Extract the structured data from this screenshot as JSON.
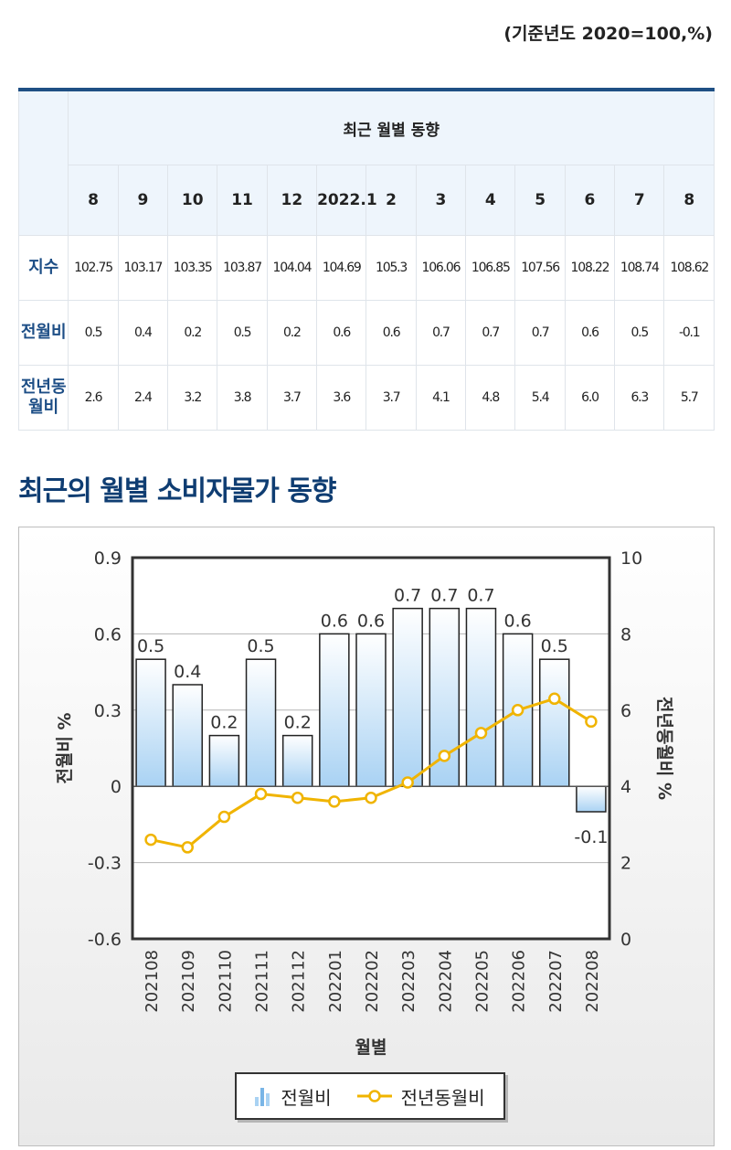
{
  "header": {
    "unit_note": "(기준년도 2020=100,%)"
  },
  "table": {
    "group_header": "최근 월별 동향",
    "months": [
      "8",
      "9",
      "10",
      "11",
      "12",
      "2022.1",
      "2",
      "3",
      "4",
      "5",
      "6",
      "7",
      "8"
    ],
    "rows": [
      {
        "label": "지수",
        "values": [
          "102.75",
          "103.17",
          "103.35",
          "103.87",
          "104.04",
          "104.69",
          "105.3",
          "106.06",
          "106.85",
          "107.56",
          "108.22",
          "108.74",
          "108.62"
        ]
      },
      {
        "label": "전월비",
        "values": [
          "0.5",
          "0.4",
          "0.2",
          "0.5",
          "0.2",
          "0.6",
          "0.6",
          "0.7",
          "0.7",
          "0.7",
          "0.6",
          "0.5",
          "-0.1"
        ]
      },
      {
        "label": "전년동월비",
        "values": [
          "2.6",
          "2.4",
          "3.2",
          "3.8",
          "3.7",
          "3.6",
          "3.7",
          "4.1",
          "4.8",
          "5.4",
          "6.0",
          "6.3",
          "5.7"
        ]
      }
    ]
  },
  "chart_title": "최근의 월별 소비자물가 동향",
  "chart_data": {
    "type": "bar",
    "categories": [
      "202108",
      "202109",
      "202110",
      "202111",
      "202112",
      "202201",
      "202202",
      "202203",
      "202204",
      "202205",
      "202206",
      "202207",
      "202208"
    ],
    "series": [
      {
        "name": "전월비",
        "type": "bar",
        "axis": "left",
        "values": [
          0.5,
          0.4,
          0.2,
          0.5,
          0.2,
          0.6,
          0.6,
          0.7,
          0.7,
          0.7,
          0.6,
          0.5,
          -0.1
        ],
        "labels": [
          "0.5",
          "0.4",
          "0.2",
          "0.5",
          "0.2",
          "0.6",
          "0.6",
          "0.7",
          "0.7",
          "0.7",
          "0.6",
          "0.5",
          "-0.1"
        ]
      },
      {
        "name": "전년동월비",
        "type": "line",
        "axis": "right",
        "values": [
          2.6,
          2.4,
          3.2,
          3.8,
          3.7,
          3.6,
          3.7,
          4.1,
          4.8,
          5.4,
          6.0,
          6.3,
          5.7
        ]
      }
    ],
    "xlabel": "월별",
    "ylabel": "전월비 %",
    "y2label": "전년동월비 %",
    "ylim": [
      -0.6,
      0.9
    ],
    "y_ticks": [
      "0.9",
      "0.6",
      "0.3",
      "0",
      "-0.3",
      "-0.6"
    ],
    "y2lim": [
      0,
      10
    ],
    "y2_ticks": [
      "10",
      "8",
      "6",
      "4",
      "2",
      "0"
    ],
    "grid": true,
    "legend_position": "bottom",
    "colors": {
      "bar_top": "#ffffff",
      "bar_bottom": "#a9d2f3",
      "line": "#f0b400",
      "grid": "#b5b5b5",
      "axis": "#333333"
    }
  }
}
